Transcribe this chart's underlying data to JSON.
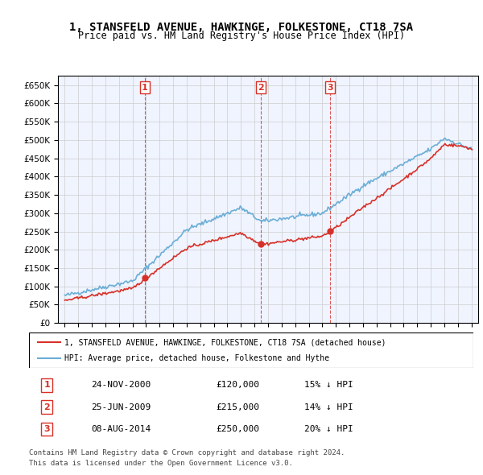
{
  "title": "1, STANSFELD AVENUE, HAWKINGE, FOLKESTONE, CT18 7SA",
  "subtitle": "Price paid vs. HM Land Registry's House Price Index (HPI)",
  "transactions": [
    {
      "num": 1,
      "date": "24-NOV-2000",
      "year": 2000.9,
      "price": 120000,
      "pct": "15% ↓ HPI"
    },
    {
      "num": 2,
      "date": "25-JUN-2009",
      "year": 2009.48,
      "price": 215000,
      "pct": "14% ↓ HPI"
    },
    {
      "num": 3,
      "date": "08-AUG-2014",
      "year": 2014.6,
      "price": 250000,
      "pct": "20% ↓ HPI"
    }
  ],
  "legend_line1": "1, STANSFELD AVENUE, HAWKINGE, FOLKESTONE, CT18 7SA (detached house)",
  "legend_line2": "HPI: Average price, detached house, Folkestone and Hythe",
  "footnote1": "Contains HM Land Registry data © Crown copyright and database right 2024.",
  "footnote2": "This data is licensed under the Open Government Licence v3.0.",
  "hpi_color": "#6baed6",
  "price_color": "#d73027",
  "vline_color": "#d73027",
  "background_color": "#ffffff",
  "grid_color": "#cccccc",
  "ylim": [
    0,
    675000
  ],
  "yticks": [
    0,
    50000,
    100000,
    150000,
    200000,
    250000,
    300000,
    350000,
    400000,
    450000,
    500000,
    550000,
    600000,
    650000
  ],
  "xmin": 1994.5,
  "xmax": 2025.5
}
